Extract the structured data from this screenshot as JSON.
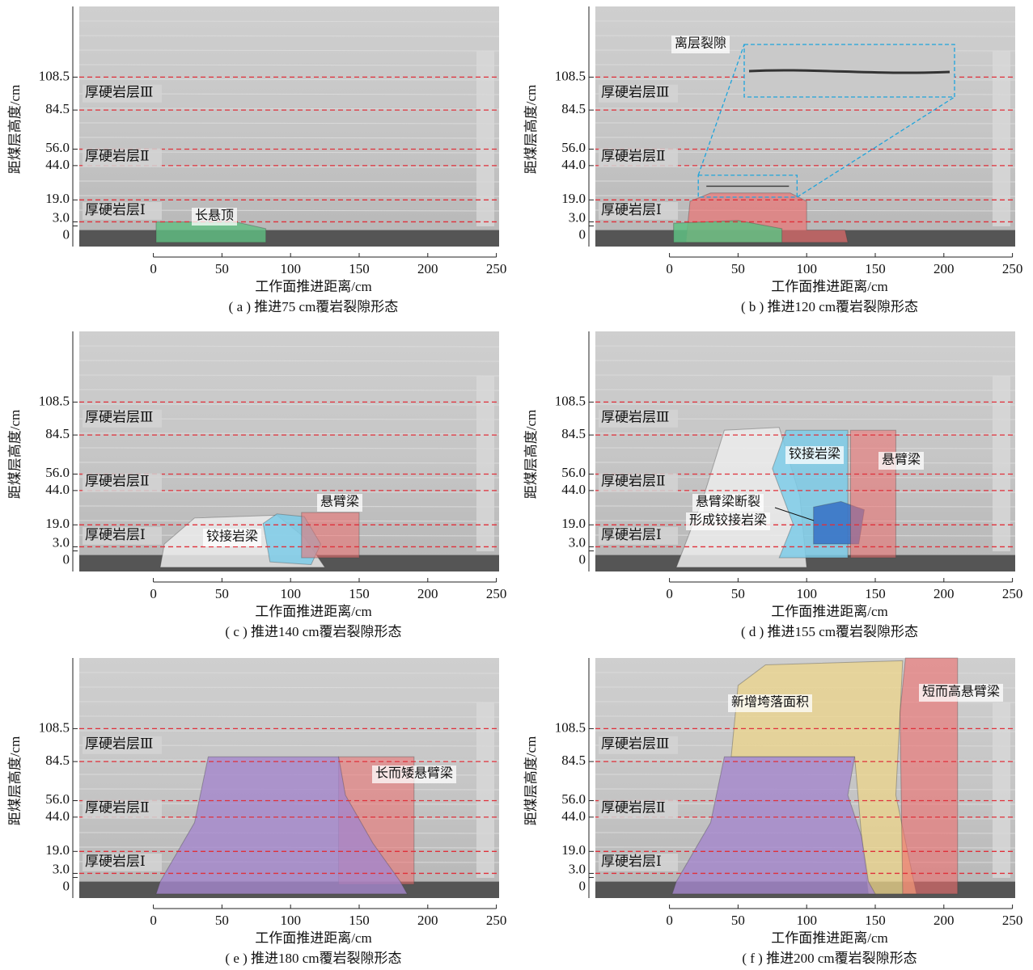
{
  "chart_data": [
    {
      "type": "photo",
      "title": "( a ) 推进75 cm覆岩裂隙形态",
      "x_label": "工作面推进距离/cm",
      "y_label": "距煤层高度/cm",
      "xlim": [
        -54,
        252
      ],
      "xticks": [
        0,
        50,
        100,
        150,
        200,
        250
      ],
      "ylim": [
        -15,
        160
      ],
      "yticks": [
        0,
        {
          "value": 3,
          "label": "3.0"
        },
        {
          "value": 19,
          "label": "19.0"
        },
        {
          "value": 44,
          "label": "44.0"
        },
        {
          "value": 56,
          "label": "56.0"
        },
        84.5,
        108.5
      ],
      "grid": true,
      "grid_color": "#e0303a",
      "layers": [
        "厚硬岩层Ⅲ",
        "厚硬岩层Ⅱ",
        "厚硬岩层Ⅰ"
      ],
      "annotations": [
        {
          "text": "长悬顶",
          "color": "#e8303a"
        }
      ]
    },
    {
      "type": "photo",
      "title": "( b ) 推进120 cm覆岩裂隙形态",
      "x_label": "工作面推进距离/cm",
      "y_label": "距煤层高度/cm",
      "xlim": [
        -54,
        252
      ],
      "xticks": [
        0,
        50,
        100,
        150,
        200,
        250
      ],
      "ylim": [
        -15,
        160
      ],
      "yticks": [
        0,
        {
          "value": 3,
          "label": "3.0"
        },
        {
          "value": 19,
          "label": "19.0"
        },
        {
          "value": 44,
          "label": "44.0"
        },
        {
          "value": 56,
          "label": "56.0"
        },
        84.5,
        108.5
      ],
      "grid": true,
      "grid_color": "#e0303a",
      "layers": [
        "厚硬岩层Ⅲ",
        "厚硬岩层Ⅱ",
        "厚硬岩层Ⅰ"
      ],
      "annotations": [
        {
          "text": "离层裂隙",
          "color": "#1ea4dc"
        }
      ]
    },
    {
      "type": "photo",
      "title": "( c ) 推进140 cm覆岩裂隙形态",
      "x_label": "工作面推进距离/cm",
      "y_label": "距煤层高度/cm",
      "xlim": [
        -54,
        252
      ],
      "xticks": [
        0,
        50,
        100,
        150,
        200,
        250
      ],
      "ylim": [
        -15,
        160
      ],
      "yticks": [
        0,
        {
          "value": 3,
          "label": "3.0"
        },
        {
          "value": 19,
          "label": "19.0"
        },
        {
          "value": 44,
          "label": "44.0"
        },
        {
          "value": 56,
          "label": "56.0"
        },
        84.5,
        108.5
      ],
      "grid": true,
      "grid_color": "#e0303a",
      "layers": [
        "厚硬岩层Ⅲ",
        "厚硬岩层Ⅱ",
        "厚硬岩层Ⅰ"
      ],
      "annotations": [
        {
          "text": "悬臂梁",
          "color": "#e8303a"
        },
        {
          "text": "铰接岩梁",
          "color": "#e8303a"
        }
      ]
    },
    {
      "type": "photo",
      "title": "( d ) 推进155 cm覆岩裂隙形态",
      "x_label": "工作面推进距离/cm",
      "y_label": "距煤层高度/cm",
      "xlim": [
        -54,
        252
      ],
      "xticks": [
        0,
        50,
        100,
        150,
        200,
        250
      ],
      "ylim": [
        -15,
        160
      ],
      "yticks": [
        0,
        {
          "value": 3,
          "label": "3.0"
        },
        {
          "value": 19,
          "label": "19.0"
        },
        {
          "value": 44,
          "label": "44.0"
        },
        {
          "value": 56,
          "label": "56.0"
        },
        84.5,
        108.5
      ],
      "grid": true,
      "grid_color": "#e0303a",
      "layers": [
        "厚硬岩层Ⅲ",
        "厚硬岩层Ⅱ",
        "厚硬岩层Ⅰ"
      ],
      "annotations": [
        {
          "text": "铰接岩梁",
          "color": "#e8303a"
        },
        {
          "text": "悬臂梁",
          "color": "#e8303a"
        },
        {
          "text": "悬臂梁断裂",
          "color": "#e8303a"
        },
        {
          "text": "形成铰接岩梁",
          "color": "#e8303a"
        }
      ]
    },
    {
      "type": "photo",
      "title": "( e ) 推进180 cm覆岩裂隙形态",
      "x_label": "工作面推进距离/cm",
      "y_label": "距煤层高度/cm",
      "xlim": [
        -54,
        252
      ],
      "xticks": [
        0,
        50,
        100,
        150,
        200,
        250
      ],
      "ylim": [
        -15,
        160
      ],
      "yticks": [
        0,
        {
          "value": 3,
          "label": "3.0"
        },
        {
          "value": 19,
          "label": "19.0"
        },
        {
          "value": 44,
          "label": "44.0"
        },
        {
          "value": 56,
          "label": "56.0"
        },
        84.5,
        108.5
      ],
      "grid": true,
      "grid_color": "#e0303a",
      "layers": [
        "厚硬岩层Ⅲ",
        "厚硬岩层Ⅱ",
        "厚硬岩层Ⅰ"
      ],
      "annotations": [
        {
          "text": "长而矮悬臂梁",
          "color": "#e8303a"
        }
      ]
    },
    {
      "type": "photo",
      "title": "( f ) 推进200 cm覆岩裂隙形态",
      "x_label": "工作面推进距离/cm",
      "y_label": "距煤层高度/cm",
      "xlim": [
        -54,
        252
      ],
      "xticks": [
        0,
        50,
        100,
        150,
        200,
        250
      ],
      "ylim": [
        -15,
        160
      ],
      "yticks": [
        0,
        {
          "value": 3,
          "label": "3.0"
        },
        {
          "value": 19,
          "label": "19.0"
        },
        {
          "value": 44,
          "label": "44.0"
        },
        {
          "value": 56,
          "label": "56.0"
        },
        84.5,
        108.5
      ],
      "grid": true,
      "grid_color": "#e0303a",
      "layers": [
        "厚硬岩层Ⅲ",
        "厚硬岩层Ⅱ",
        "厚硬岩层Ⅰ"
      ],
      "annotations": [
        {
          "text": "新增垮落面积",
          "color": "#e8303a"
        },
        {
          "text": "短而高悬臂梁",
          "color": "#e8303a"
        }
      ]
    }
  ]
}
